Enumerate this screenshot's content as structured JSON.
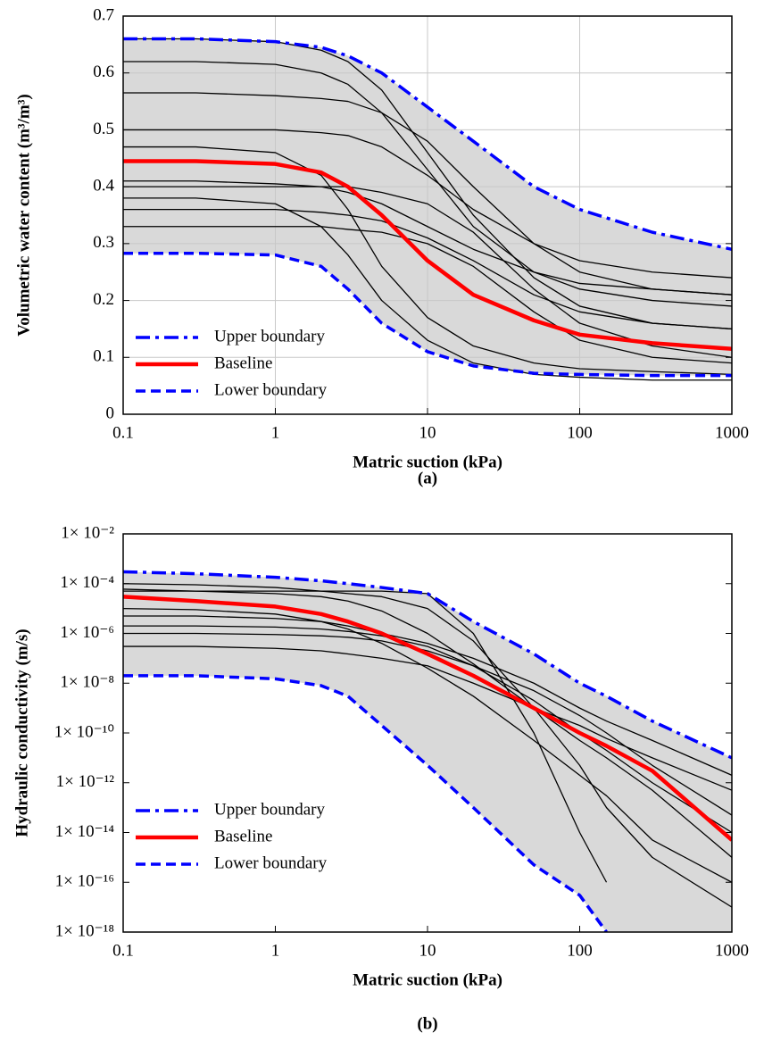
{
  "chart_data": [
    {
      "type": "line",
      "caption": "(a)",
      "xlabel": "Matric suction (kPa)",
      "ylabel": "Volumetric water content (m³/m³)",
      "xscale": "log",
      "yscale": "linear",
      "grid": true,
      "legend": "lower left",
      "shade_color": "#d9d9d9",
      "xlim": [
        0.1,
        1000
      ],
      "xticks": [
        0.1,
        1,
        10,
        100,
        1000
      ],
      "ylim": [
        0,
        0.7
      ],
      "yticks": [
        0,
        0.1,
        0.2,
        0.3,
        0.4,
        0.5,
        0.6,
        0.7
      ],
      "x": [
        0.1,
        0.3,
        1,
        2,
        3,
        5,
        10,
        20,
        50,
        100,
        300,
        1000
      ],
      "series": [
        {
          "name": "Upper boundary",
          "color": "#0000ff",
          "style": "dashdot",
          "values": [
            0.66,
            0.66,
            0.655,
            0.645,
            0.63,
            0.6,
            0.54,
            0.48,
            0.4,
            0.36,
            0.32,
            0.29
          ]
        },
        {
          "name": "Baseline",
          "color": "#ff0000",
          "style": "solid",
          "values": [
            0.445,
            0.445,
            0.44,
            0.425,
            0.4,
            0.35,
            0.27,
            0.21,
            0.165,
            0.14,
            0.125,
            0.115
          ]
        },
        {
          "name": "Lower boundary",
          "color": "#0000ff",
          "style": "dashed",
          "values": [
            0.283,
            0.283,
            0.28,
            0.26,
            0.22,
            0.16,
            0.11,
            0.085,
            0.072,
            0.07,
            0.068,
            0.068
          ]
        },
        {
          "color": "#000000",
          "values": [
            0.62,
            0.62,
            0.615,
            0.6,
            0.58,
            0.53,
            0.43,
            0.33,
            0.25,
            0.22,
            0.2,
            0.19
          ]
        },
        {
          "color": "#000000",
          "values": [
            0.565,
            0.565,
            0.56,
            0.555,
            0.55,
            0.53,
            0.48,
            0.4,
            0.3,
            0.25,
            0.22,
            0.21
          ]
        },
        {
          "color": "#000000",
          "values": [
            0.5,
            0.5,
            0.5,
            0.495,
            0.49,
            0.47,
            0.42,
            0.36,
            0.3,
            0.27,
            0.25,
            0.24
          ]
        },
        {
          "color": "#000000",
          "values": [
            0.47,
            0.47,
            0.46,
            0.42,
            0.36,
            0.26,
            0.17,
            0.12,
            0.09,
            0.08,
            0.075,
            0.07
          ]
        },
        {
          "color": "#000000",
          "values": [
            0.41,
            0.41,
            0.405,
            0.4,
            0.39,
            0.37,
            0.33,
            0.29,
            0.25,
            0.23,
            0.22,
            0.21
          ]
        },
        {
          "color": "#000000",
          "values": [
            0.38,
            0.38,
            0.37,
            0.33,
            0.28,
            0.2,
            0.13,
            0.09,
            0.07,
            0.065,
            0.06,
            0.06
          ]
        },
        {
          "color": "#000000",
          "values": [
            0.36,
            0.36,
            0.36,
            0.355,
            0.35,
            0.34,
            0.31,
            0.27,
            0.21,
            0.18,
            0.16,
            0.15
          ]
        },
        {
          "color": "#000000",
          "values": [
            0.33,
            0.33,
            0.33,
            0.33,
            0.325,
            0.32,
            0.3,
            0.26,
            0.18,
            0.13,
            0.1,
            0.09
          ]
        },
        {
          "color": "#000000",
          "values": [
            0.66,
            0.66,
            0.655,
            0.64,
            0.62,
            0.57,
            0.46,
            0.35,
            0.24,
            0.19,
            0.16,
            0.15
          ]
        },
        {
          "color": "#000000",
          "values": [
            0.4,
            0.4,
            0.4,
            0.4,
            0.4,
            0.39,
            0.37,
            0.32,
            0.22,
            0.16,
            0.12,
            0.1
          ]
        }
      ]
    },
    {
      "type": "line",
      "caption": "(b)",
      "xlabel": "Matric suction (kPa)",
      "ylabel": "Hydraulic conductivity (m/s)",
      "xscale": "log",
      "yscale": "log",
      "grid": false,
      "legend": "lower left",
      "shade_color": "#d9d9d9",
      "xlim": [
        0.1,
        1000
      ],
      "xticks": [
        0.1,
        1,
        10,
        100,
        1000
      ],
      "ylim": [
        1e-18,
        0.01
      ],
      "yticks": [
        {
          "value": 0.01,
          "label": "1× 10⁻²"
        },
        {
          "value": 0.0001,
          "label": "1× 10⁻⁴"
        },
        {
          "value": 1e-06,
          "label": "1× 10⁻⁶"
        },
        {
          "value": 1e-08,
          "label": "1× 10⁻⁸"
        },
        {
          "value": 1e-10,
          "label": "1× 10⁻¹⁰"
        },
        {
          "value": 1e-12,
          "label": "1× 10⁻¹²"
        },
        {
          "value": 1e-14,
          "label": "1× 10⁻¹⁴"
        },
        {
          "value": 1e-16,
          "label": "1× 10⁻¹⁶"
        },
        {
          "value": 1e-18,
          "label": "1× 10⁻¹⁸"
        }
      ],
      "x": [
        0.1,
        0.3,
        1,
        2,
        3,
        5,
        10,
        20,
        50,
        100,
        150,
        300,
        1000
      ],
      "series": [
        {
          "name": "Upper boundary",
          "color": "#0000ff",
          "style": "dashdot",
          "values": [
            0.0003,
            0.00025,
            0.00018,
            0.00013,
            0.0001,
            7e-05,
            4e-05,
            3e-06,
            1.5e-07,
            1e-08,
            3e-09,
            3e-10,
            1e-11
          ]
        },
        {
          "name": "Baseline",
          "color": "#ff0000",
          "style": "solid",
          "values": [
            3e-05,
            2e-05,
            1.2e-05,
            6e-06,
            3e-06,
            1e-06,
            1.5e-07,
            2e-08,
            1e-09,
            1e-10,
            3e-11,
            3e-12,
            5e-15
          ]
        },
        {
          "name": "Lower boundary",
          "color": "#0000ff",
          "style": "dashed",
          "values": [
            2e-08,
            2e-08,
            1.5e-08,
            8e-09,
            3e-09,
            2e-10,
            5e-12,
            1e-13,
            5e-16,
            3e-17,
            1e-18,
            null,
            null
          ]
        },
        {
          "color": "#000000",
          "values": [
            0.0001,
            9e-05,
            7e-05,
            5e-05,
            4e-05,
            3e-05,
            1e-05,
            5e-07,
            1e-09,
            5e-12,
            1e-13,
            1e-15,
            1e-17
          ]
        },
        {
          "color": "#000000",
          "values": [
            5e-06,
            5e-06,
            4e-06,
            3e-06,
            2e-06,
            1e-06,
            4e-07,
            1e-07,
            1e-08,
            1e-09,
            3e-10,
            5e-11,
            2e-12
          ]
        },
        {
          "color": "#000000",
          "values": [
            1e-06,
            1e-06,
            9e-07,
            8e-07,
            7e-07,
            5e-07,
            2e-07,
            5e-08,
            5e-09,
            5e-10,
            1e-10,
            5e-12,
            5e-14
          ]
        },
        {
          "color": "#000000",
          "values": [
            1e-05,
            9e-06,
            6e-06,
            3e-06,
            1.5e-06,
            4e-07,
            4e-08,
            3e-09,
            5e-11,
            2e-12,
            3e-13,
            5e-15,
            1e-16
          ]
        },
        {
          "color": "#000000",
          "values": [
            3e-07,
            3e-07,
            2.5e-07,
            2e-07,
            1.5e-07,
            1e-07,
            5e-08,
            1e-08,
            1e-09,
            2e-10,
            6e-11,
            1e-11,
            5e-13
          ]
        },
        {
          "color": "#000000",
          "values": [
            6e-05,
            5e-05,
            4e-05,
            3e-05,
            2e-05,
            8e-06,
            1e-06,
            6e-08,
            1e-09,
            5e-11,
            1e-11,
            5e-13,
            1e-15
          ]
        },
        {
          "color": "#000000",
          "values": [
            2e-06,
            2e-06,
            1.8e-06,
            1.5e-06,
            1.2e-06,
            8e-07,
            3e-07,
            5e-08,
            2e-09,
            1e-10,
            2e-11,
            1e-12,
            1e-14
          ]
        },
        {
          "color": "#000000",
          "values": [
            5e-05,
            5e-05,
            5e-05,
            5e-05,
            5e-05,
            5e-05,
            4e-05,
            1e-06,
            1e-10,
            1e-14,
            1e-16,
            null,
            null
          ]
        }
      ]
    }
  ]
}
